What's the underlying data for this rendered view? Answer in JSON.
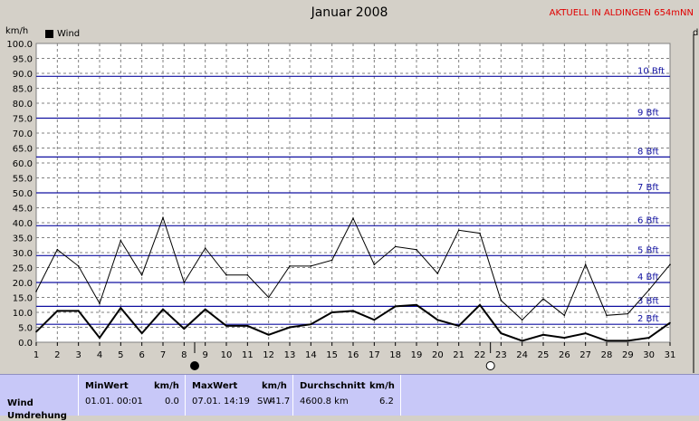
{
  "title": "Januar 2008",
  "station": "AKTUELL IN ALDINGEN 654mNN",
  "unit_left": "km/h",
  "unit_right": "d",
  "chart_data": {
    "type": "line",
    "title": "Januar 2008",
    "ylabel": "km/h",
    "x": [
      1,
      2,
      3,
      4,
      5,
      6,
      7,
      8,
      9,
      10,
      11,
      12,
      13,
      14,
      15,
      16,
      17,
      18,
      19,
      20,
      21,
      22,
      23,
      24,
      25,
      26,
      27,
      28,
      29,
      30,
      31
    ],
    "ylim": [
      0,
      100
    ],
    "yticks": [
      "0.0",
      "5.0",
      "10.0",
      "15.0",
      "20.0",
      "25.0",
      "30.0",
      "35.0",
      "40.0",
      "45.0",
      "50.0",
      "55.0",
      "60.0",
      "65.0",
      "70.0",
      "75.0",
      "80.0",
      "85.0",
      "90.0",
      "95.0",
      "100.0"
    ],
    "xticks": [
      "1",
      "2",
      "3",
      "4",
      "5",
      "6",
      "7",
      "8",
      "9",
      "10",
      "11",
      "12",
      "13",
      "14",
      "15",
      "16",
      "17",
      "18",
      "19",
      "20",
      "21",
      "22",
      "23",
      "24",
      "25",
      "26",
      "27",
      "28",
      "29",
      "30",
      "31"
    ],
    "series": [
      {
        "name": "Wind",
        "role": "max",
        "color": "#000000",
        "values": [
          17.0,
          31.0,
          25.5,
          13.0,
          34.0,
          22.5,
          41.7,
          20.0,
          31.5,
          22.5,
          22.5,
          15.0,
          25.5,
          25.5,
          27.5,
          41.5,
          26.0,
          32.0,
          31.0,
          23.0,
          37.5,
          36.5,
          14.0,
          7.5,
          14.5,
          9.0,
          26.0,
          9.0,
          9.5,
          17.5,
          26.0
        ]
      },
      {
        "name": "Wind",
        "role": "avg",
        "color": "#000000",
        "values": [
          3.5,
          10.5,
          10.5,
          1.5,
          11.5,
          3.0,
          11.0,
          4.5,
          11.0,
          5.5,
          5.5,
          2.5,
          5.0,
          6.0,
          10.0,
          10.5,
          7.5,
          12.0,
          12.5,
          7.5,
          5.5,
          12.5,
          3.0,
          0.5,
          2.5,
          1.5,
          3.0,
          0.5,
          0.5,
          1.5,
          6.5
        ]
      }
    ],
    "beaufort": [
      {
        "label": "2 Bft",
        "kmh": 6
      },
      {
        "label": "3 Bft",
        "kmh": 12
      },
      {
        "label": "4 Bft",
        "kmh": 20
      },
      {
        "label": "5 Bft",
        "kmh": 29
      },
      {
        "label": "6 Bft",
        "kmh": 39
      },
      {
        "label": "7 Bft",
        "kmh": 50
      },
      {
        "label": "8 Bft",
        "kmh": 62
      },
      {
        "label": "9 Bft",
        "kmh": 75
      },
      {
        "label": "10 Bft",
        "kmh": 89
      }
    ],
    "moon": [
      {
        "day": 8.5,
        "phase": "new"
      },
      {
        "day": 22.5,
        "phase": "full"
      }
    ],
    "legend": {
      "label": "Wind",
      "position": "top-left"
    },
    "grid": true,
    "colors": {
      "background": "#ffffff",
      "frame": "#d4d0c8",
      "beaufort": "#1010a0",
      "grid": "#808080"
    }
  },
  "stats": {
    "row_label": "Wind",
    "row_label2": "Umdrehung",
    "min_header": "MinWert",
    "min_unit": "km/h",
    "min_date": "01.01.  00:01",
    "min_value": "0.0",
    "max_header": "MaxWert",
    "max_unit": "km/h",
    "max_date": "07.01.  14:19",
    "max_dir": "SW",
    "max_value": "41.7",
    "avg_header": "Durchschnitt",
    "avg_unit": "km/h",
    "avg_dist": "4600.8 km",
    "avg_value": "6.2"
  }
}
